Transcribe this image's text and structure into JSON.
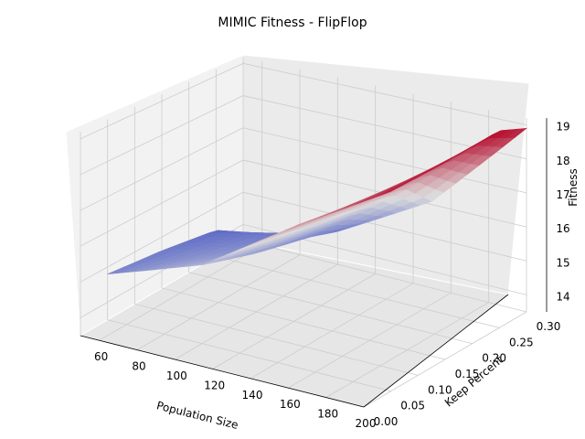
{
  "chart_data": {
    "type": "surface",
    "title": "MIMIC Fitness - FlipFlop",
    "xlabel": "Population Size",
    "ylabel": "Keep Percent",
    "zlabel": "Fitness",
    "colormap": "coolwarm",
    "x_ticks": [
      "60",
      "80",
      "100",
      "120",
      "140",
      "160",
      "180",
      "200"
    ],
    "y_ticks": [
      "0.00",
      "0.05",
      "0.10",
      "0.15",
      "0.20",
      "0.25",
      "0.30"
    ],
    "z_ticks": [
      "14",
      "15",
      "16",
      "17",
      "18",
      "19"
    ],
    "xlim": [
      50,
      200
    ],
    "ylim": [
      0.0,
      0.3
    ],
    "zlim": [
      13.5,
      19.2
    ],
    "grid": true,
    "x": [
      50,
      100,
      150,
      200
    ],
    "y": [
      0.05,
      0.15,
      0.25,
      0.3
    ],
    "z": [
      [
        14.8,
        15.7,
        17.4,
        18.9
      ],
      [
        14.6,
        15.2,
        17.2,
        19.0
      ],
      [
        14.3,
        14.8,
        16.9,
        19.2
      ],
      [
        13.7,
        14.5,
        16.1,
        18.9
      ]
    ]
  },
  "colors": {
    "low": "#3b4cc0",
    "mid": "#dddddd",
    "high": "#b40426",
    "pane_left": "#f2f2f2",
    "pane_right": "#ebebeb",
    "pane_floor": "#e6e6e6",
    "grid": "#cccccc"
  }
}
